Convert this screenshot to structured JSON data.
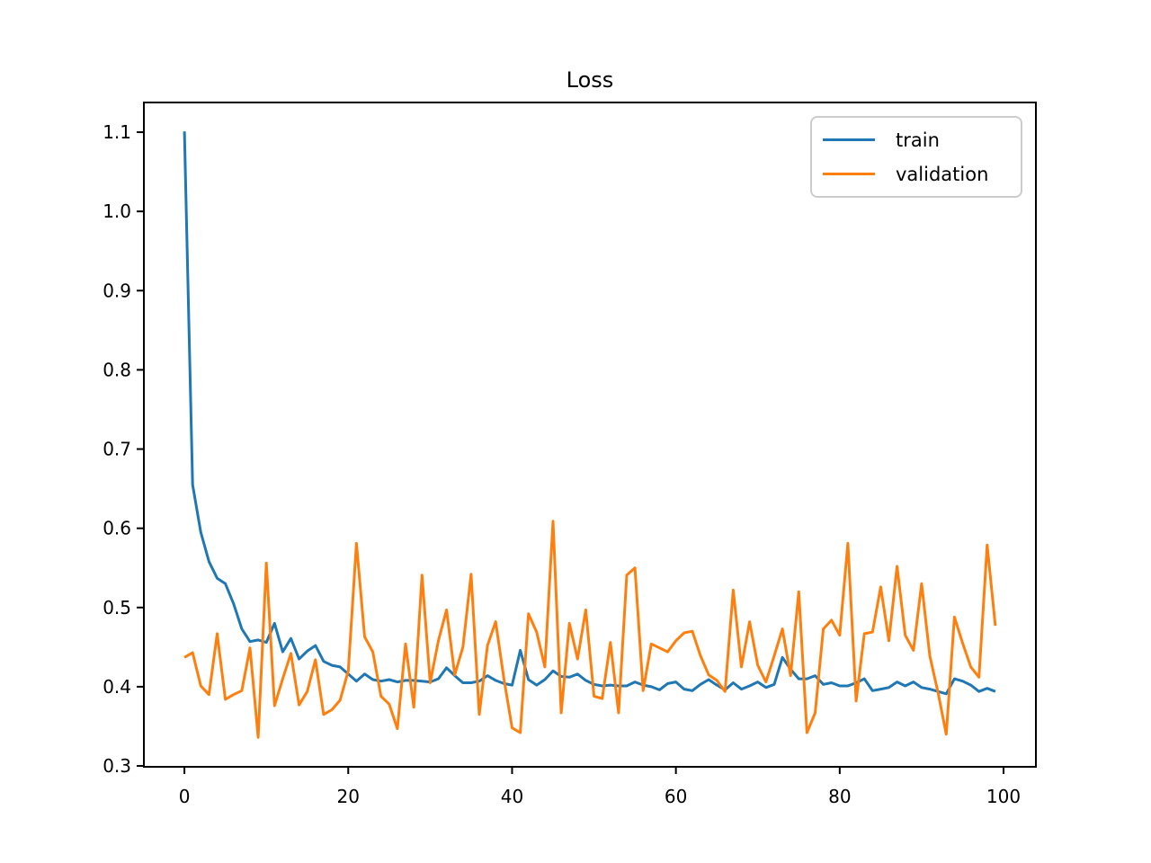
{
  "figure": {
    "title": "Loss",
    "background_color": "#ffffff",
    "axes_edge_color": "#000000"
  },
  "chart_data": {
    "type": "line",
    "title": "Loss",
    "xlabel": "",
    "ylabel": "",
    "grid": false,
    "x": {
      "start": 0,
      "step": 1,
      "count": 100,
      "meaning": "epoch index"
    },
    "xlim": [
      -4.95,
      103.95
    ],
    "ylim": [
      0.2989,
      1.1375
    ],
    "x_ticks": {
      "values": [
        0,
        20,
        40,
        60,
        80,
        100
      ],
      "labels": [
        "0",
        "20",
        "40",
        "60",
        "80",
        "100"
      ]
    },
    "y_ticks": {
      "values": [
        0.3,
        0.4,
        0.5,
        0.6,
        0.7,
        0.8,
        0.9,
        1.0,
        1.1
      ],
      "labels": [
        "0.3",
        "0.4",
        "0.5",
        "0.6",
        "0.7",
        "0.8",
        "0.9",
        "1.0",
        "1.1"
      ]
    },
    "legend": {
      "position": "upper right"
    },
    "series": [
      {
        "name": "train",
        "color": "#1f77b4",
        "values": [
          1.101,
          0.655,
          0.595,
          0.558,
          0.537,
          0.53,
          0.505,
          0.473,
          0.457,
          0.459,
          0.456,
          0.48,
          0.444,
          0.461,
          0.435,
          0.445,
          0.452,
          0.432,
          0.427,
          0.425,
          0.416,
          0.407,
          0.416,
          0.409,
          0.407,
          0.409,
          0.406,
          0.408,
          0.408,
          0.407,
          0.406,
          0.41,
          0.424,
          0.414,
          0.405,
          0.405,
          0.407,
          0.414,
          0.408,
          0.404,
          0.402,
          0.446,
          0.409,
          0.402,
          0.409,
          0.42,
          0.413,
          0.412,
          0.416,
          0.408,
          0.403,
          0.401,
          0.402,
          0.401,
          0.401,
          0.406,
          0.402,
          0.4,
          0.396,
          0.404,
          0.406,
          0.397,
          0.395,
          0.403,
          0.409,
          0.402,
          0.396,
          0.405,
          0.397,
          0.401,
          0.406,
          0.399,
          0.403,
          0.437,
          0.422,
          0.41,
          0.41,
          0.414,
          0.403,
          0.405,
          0.401,
          0.401,
          0.405,
          0.41,
          0.395,
          0.397,
          0.399,
          0.406,
          0.401,
          0.406,
          0.399,
          0.397,
          0.394,
          0.391,
          0.41,
          0.407,
          0.402,
          0.394,
          0.398,
          0.394
        ]
      },
      {
        "name": "validation",
        "color": "#ff7f0e",
        "values": [
          0.437,
          0.443,
          0.401,
          0.39,
          0.467,
          0.384,
          0.39,
          0.395,
          0.449,
          0.336,
          0.556,
          0.376,
          0.41,
          0.442,
          0.377,
          0.394,
          0.434,
          0.365,
          0.371,
          0.383,
          0.42,
          0.581,
          0.463,
          0.444,
          0.388,
          0.378,
          0.347,
          0.454,
          0.374,
          0.541,
          0.405,
          0.458,
          0.497,
          0.415,
          0.45,
          0.542,
          0.365,
          0.452,
          0.482,
          0.41,
          0.348,
          0.342,
          0.492,
          0.469,
          0.425,
          0.609,
          0.367,
          0.48,
          0.435,
          0.497,
          0.388,
          0.385,
          0.456,
          0.367,
          0.541,
          0.55,
          0.395,
          0.454,
          0.449,
          0.444,
          0.458,
          0.468,
          0.47,
          0.439,
          0.415,
          0.408,
          0.394,
          0.522,
          0.425,
          0.482,
          0.427,
          0.406,
          0.439,
          0.473,
          0.414,
          0.52,
          0.342,
          0.367,
          0.473,
          0.484,
          0.465,
          0.581,
          0.382,
          0.467,
          0.469,
          0.526,
          0.458,
          0.552,
          0.465,
          0.446,
          0.53,
          0.439,
          0.393,
          0.34,
          0.488,
          0.455,
          0.425,
          0.412,
          0.579,
          0.477
        ]
      }
    ]
  }
}
